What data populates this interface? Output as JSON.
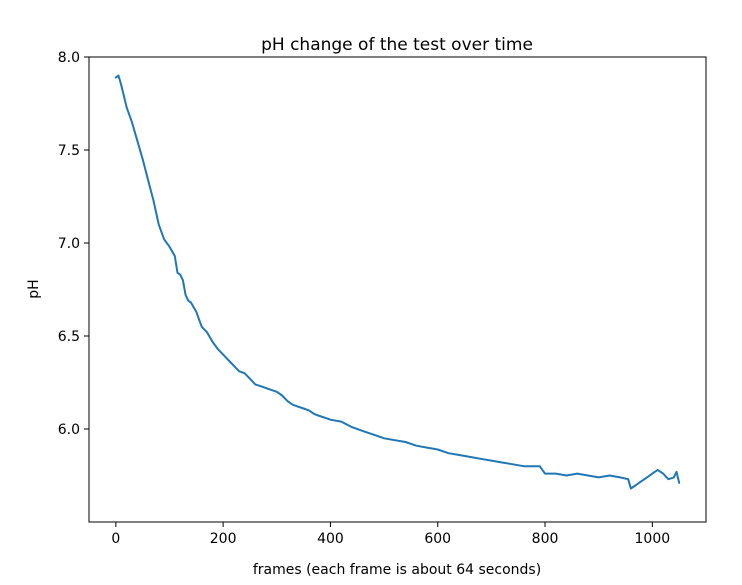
{
  "chart_data": {
    "type": "line",
    "title": "pH change of the test over time",
    "xlabel": "frames (each frame is about 64 seconds)",
    "ylabel": "pH",
    "xlim": [
      -50,
      1100
    ],
    "ylim": [
      5.5,
      8.0
    ],
    "xticks": [
      {
        "value": 0,
        "label": "0"
      },
      {
        "value": 200,
        "label": "200"
      },
      {
        "value": 400,
        "label": "400"
      },
      {
        "value": 600,
        "label": "600"
      },
      {
        "value": 800,
        "label": "800"
      },
      {
        "value": 1000,
        "label": "1000"
      }
    ],
    "yticks": [
      {
        "value": 6.0,
        "label": "6.0"
      },
      {
        "value": 6.5,
        "label": "6.5"
      },
      {
        "value": 7.0,
        "label": "7.0"
      },
      {
        "value": 7.5,
        "label": "7.5"
      },
      {
        "value": 8.0,
        "label": "8.0"
      }
    ],
    "grid": false,
    "series": [
      {
        "color": "#1f77b4",
        "x": [
          0,
          5,
          10,
          20,
          30,
          40,
          50,
          60,
          70,
          80,
          90,
          100,
          110,
          115,
          120,
          125,
          130,
          135,
          140,
          150,
          160,
          170,
          180,
          190,
          200,
          210,
          220,
          230,
          240,
          250,
          260,
          270,
          280,
          290,
          300,
          310,
          320,
          330,
          340,
          350,
          360,
          370,
          380,
          390,
          400,
          420,
          440,
          460,
          480,
          500,
          520,
          540,
          560,
          580,
          600,
          620,
          640,
          660,
          680,
          700,
          720,
          740,
          760,
          780,
          790,
          800,
          820,
          840,
          860,
          880,
          900,
          920,
          940,
          955,
          960,
          970,
          980,
          990,
          1000,
          1010,
          1020,
          1030,
          1040,
          1045,
          1050
        ],
        "y": [
          7.89,
          7.9,
          7.85,
          7.73,
          7.65,
          7.55,
          7.45,
          7.34,
          7.23,
          7.1,
          7.02,
          6.98,
          6.93,
          6.84,
          6.83,
          6.8,
          6.72,
          6.69,
          6.68,
          6.63,
          6.55,
          6.52,
          6.47,
          6.43,
          6.4,
          6.37,
          6.34,
          6.31,
          6.3,
          6.27,
          6.24,
          6.23,
          6.22,
          6.21,
          6.2,
          6.18,
          6.15,
          6.13,
          6.12,
          6.11,
          6.1,
          6.08,
          6.07,
          6.06,
          6.05,
          6.04,
          6.01,
          5.99,
          5.97,
          5.95,
          5.94,
          5.93,
          5.91,
          5.9,
          5.89,
          5.87,
          5.86,
          5.85,
          5.84,
          5.83,
          5.82,
          5.81,
          5.8,
          5.8,
          5.8,
          5.76,
          5.76,
          5.75,
          5.76,
          5.75,
          5.74,
          5.75,
          5.74,
          5.73,
          5.68,
          5.7,
          5.72,
          5.74,
          5.76,
          5.78,
          5.76,
          5.73,
          5.74,
          5.77,
          5.71
        ]
      }
    ]
  }
}
